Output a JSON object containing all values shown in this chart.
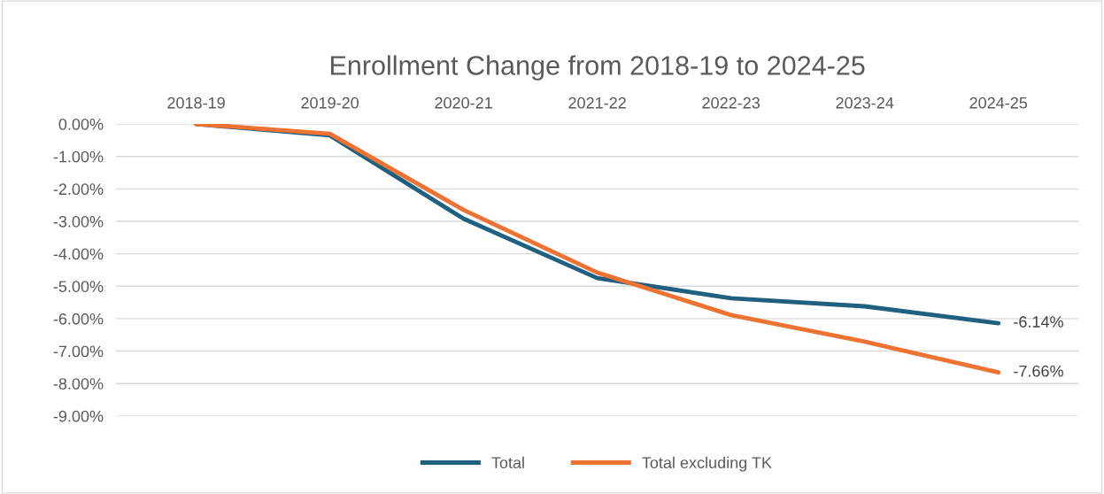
{
  "chart_data": {
    "type": "line",
    "title": "Enrollment Change from 2018-19 to 2024-25",
    "categories": [
      "2018-19",
      "2019-20",
      "2020-21",
      "2021-22",
      "2022-23",
      "2023-24",
      "2024-25"
    ],
    "series": [
      {
        "name": "Total",
        "color": "#1f5f80",
        "values": [
          0,
          -0.35,
          -2.92,
          -4.75,
          -5.37,
          -5.62,
          -6.14
        ],
        "value_labels": [
          null,
          null,
          null,
          null,
          null,
          null,
          "-6.14%"
        ]
      },
      {
        "name": "Total excluding TK",
        "color": "#ee7332",
        "values": [
          0,
          -0.3,
          -2.65,
          -4.58,
          -5.89,
          -6.71,
          -7.66
        ],
        "value_labels": [
          null,
          null,
          null,
          null,
          null,
          null,
          "-7.66%"
        ]
      }
    ],
    "ylim": [
      -9,
      0
    ],
    "yticks": [
      {
        "value": 0,
        "label": "0.00%"
      },
      {
        "value": -1,
        "label": "-1.00%"
      },
      {
        "value": -2,
        "label": "-2.00%"
      },
      {
        "value": -3,
        "label": "-3.00%"
      },
      {
        "value": -4,
        "label": "-4.00%"
      },
      {
        "value": -5,
        "label": "-5.00%"
      },
      {
        "value": -6,
        "label": "-6.00%"
      },
      {
        "value": -7,
        "label": "-7.00%"
      },
      {
        "value": -8,
        "label": "-8.00%"
      },
      {
        "value": -9,
        "label": "-9.00%"
      }
    ],
    "grid": "y",
    "legend": "bottom",
    "marker": "none",
    "line_style": "solid"
  }
}
